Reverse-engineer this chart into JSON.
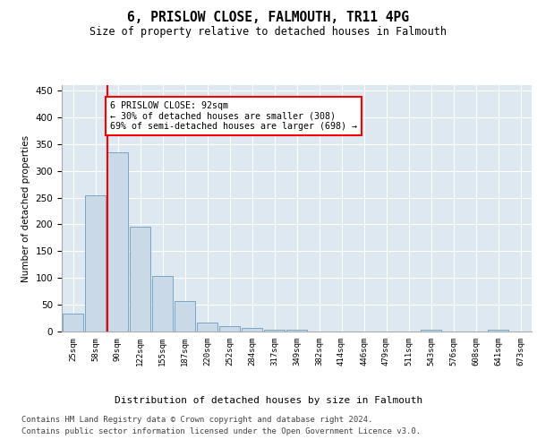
{
  "title": "6, PRISLOW CLOSE, FALMOUTH, TR11 4PG",
  "subtitle": "Size of property relative to detached houses in Falmouth",
  "xlabel": "Distribution of detached houses by size in Falmouth",
  "ylabel": "Number of detached properties",
  "bar_labels": [
    "25sqm",
    "58sqm",
    "90sqm",
    "122sqm",
    "155sqm",
    "187sqm",
    "220sqm",
    "252sqm",
    "284sqm",
    "317sqm",
    "349sqm",
    "382sqm",
    "414sqm",
    "446sqm",
    "479sqm",
    "511sqm",
    "543sqm",
    "576sqm",
    "608sqm",
    "641sqm",
    "673sqm"
  ],
  "bar_values": [
    33,
    255,
    335,
    196,
    103,
    57,
    17,
    10,
    7,
    4,
    4,
    0,
    0,
    0,
    0,
    0,
    3,
    0,
    0,
    3,
    0
  ],
  "bar_color": "#c9d9e8",
  "bar_edge_color": "#6b9dc0",
  "property_line_index": 2,
  "property_line_color": "red",
  "annotation_text": "6 PRISLOW CLOSE: 92sqm\n← 30% of detached houses are smaller (308)\n69% of semi-detached houses are larger (698) →",
  "annotation_box_color": "white",
  "annotation_box_edge": "red",
  "ylim": [
    0,
    460
  ],
  "yticks": [
    0,
    50,
    100,
    150,
    200,
    250,
    300,
    350,
    400,
    450
  ],
  "footer_line1": "Contains HM Land Registry data © Crown copyright and database right 2024.",
  "footer_line2": "Contains public sector information licensed under the Open Government Licence v3.0.",
  "plot_background": "#dde8f0",
  "grid_color": "white"
}
